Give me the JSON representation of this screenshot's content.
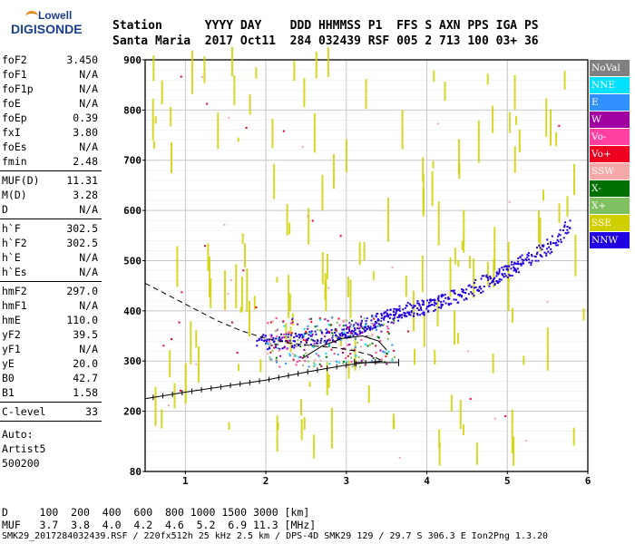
{
  "logo": {
    "line1": "Lowell",
    "line2": "DIGISONDE"
  },
  "header": {
    "line1": "Station      YYYY DAY    DDD HHMMSS P1  FFS S AXN PPS IGA PS",
    "line2": "Santa Maria  2017 Oct11  284 032439 RSF 005 2 713 100 03+ 36"
  },
  "params": [
    {
      "k": "foF2",
      "v": "3.450"
    },
    {
      "k": "foF1",
      "v": "N/A"
    },
    {
      "k": "foF1p",
      "v": "N/A"
    },
    {
      "k": "foE",
      "v": "N/A"
    },
    {
      "k": "foEp",
      "v": "0.39"
    },
    {
      "k": "fxI",
      "v": "3.80"
    },
    {
      "k": "foEs",
      "v": "N/A"
    },
    {
      "k": "fmin",
      "v": "2.48"
    },
    {
      "k": "MUF(D)",
      "v": "11.31"
    },
    {
      "k": "M(D)",
      "v": "3.28"
    },
    {
      "k": "D",
      "v": "N/A"
    },
    {
      "k": "h`F",
      "v": "302.5"
    },
    {
      "k": "h`F2",
      "v": "302.5"
    },
    {
      "k": "h`E",
      "v": "N/A"
    },
    {
      "k": "h`Es",
      "v": "N/A"
    },
    {
      "k": "hmF2",
      "v": "297.0"
    },
    {
      "k": "hmF1",
      "v": "N/A"
    },
    {
      "k": "hmE",
      "v": "110.0"
    },
    {
      "k": "yF2",
      "v": "39.5"
    },
    {
      "k": "yF1",
      "v": "N/A"
    },
    {
      "k": "yE",
      "v": "20.0"
    },
    {
      "k": "B0",
      "v": "42.7"
    },
    {
      "k": "B1",
      "v": "1.58"
    },
    {
      "k": "C-level",
      "v": "33"
    }
  ],
  "auto": {
    "l1": "Auto:",
    "l2": "Artist5",
    "l3": "500200"
  },
  "legend": [
    {
      "label": "NoVal",
      "color": "#808080"
    },
    {
      "label": "NNE",
      "color": "#00e0ff"
    },
    {
      "label": "E",
      "color": "#3090ff"
    },
    {
      "label": "W",
      "color": "#a000a0"
    },
    {
      "label": "Vo-",
      "color": "#ff40a0"
    },
    {
      "label": "Vo+",
      "color": "#f00020"
    },
    {
      "label": "SSW",
      "color": "#f4a8a8"
    },
    {
      "label": "X-",
      "color": "#007000"
    },
    {
      "label": "X+",
      "color": "#80c060"
    },
    {
      "label": "SSE",
      "color": "#d0d000"
    },
    {
      "label": "NNW",
      "color": "#2000e0"
    }
  ],
  "footer": {
    "d_line": "D     100  200  400  600  800 1000 1500 3000 [km]",
    "muf_line": "MUF   3.7  3.8  4.0  4.2  4.6  5.2  6.9 11.3 [MHz]",
    "status": "SMK29_2017284032439.RSF / 220fx512h 25 kHz 2.5 km / DPS-4D SMK29 129 / 29.7 S 306.3 E Ion2Png 1.3.20"
  },
  "chart_data": {
    "type": "scatter",
    "xlim": [
      0.5,
      6.0
    ],
    "ylim": [
      80,
      900
    ],
    "xticks": [
      "1",
      "2",
      "3",
      "4",
      "5",
      "6"
    ],
    "yticks": [
      "80",
      "200",
      "300",
      "400",
      "500",
      "600",
      "700",
      "800",
      "900"
    ],
    "grid": true,
    "trace_o": {
      "x": [
        1.9,
        2.2,
        2.5,
        2.8,
        3.0,
        3.2,
        3.4,
        3.6,
        3.8,
        4.0,
        4.2,
        4.5,
        4.8,
        5.0,
        5.2,
        5.5,
        5.8
      ],
      "y": [
        340,
        340,
        345,
        352,
        360,
        372,
        385,
        395,
        405,
        410,
        420,
        440,
        465,
        480,
        500,
        530,
        575
      ]
    },
    "profile_dashed": {
      "x": [
        0.5,
        0.8,
        1.1,
        1.4,
        1.7,
        2.0,
        2.3,
        2.6,
        2.9,
        3.1,
        3.3,
        3.45
      ],
      "y": [
        455,
        430,
        405,
        380,
        360,
        345,
        336,
        330,
        326,
        320,
        312,
        300
      ]
    },
    "profile_solid": {
      "x": [
        0.5,
        1.0,
        1.5,
        2.0,
        2.5,
        3.0,
        3.2,
        3.4,
        3.45
      ],
      "y": [
        225,
        238,
        250,
        262,
        278,
        292,
        296,
        299,
        300
      ]
    },
    "fit_curve": {
      "x": [
        2.45,
        2.7,
        2.95,
        3.2,
        3.4,
        3.5
      ],
      "y": [
        305,
        330,
        345,
        350,
        340,
        322
      ]
    },
    "error_bar": {
      "x0": 3.1,
      "x1": 3.65,
      "y": 297
    }
  }
}
